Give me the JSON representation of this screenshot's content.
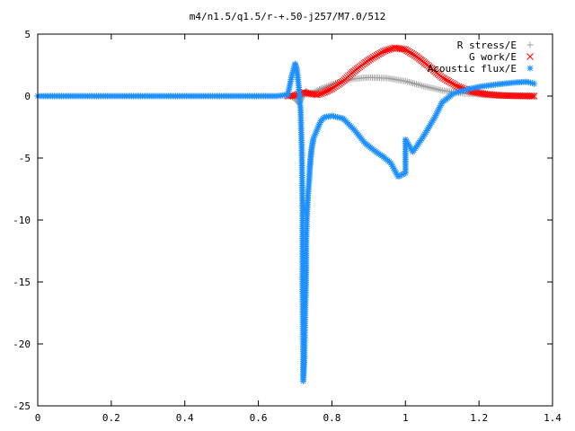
{
  "chart_data": {
    "type": "scatter",
    "title": "m4/n1.5/q1.5/r-+.50-j257/M7.0/512",
    "xlabel": "",
    "ylabel": "",
    "xlim": [
      0,
      1.4
    ],
    "ylim": [
      -25,
      5
    ],
    "x_ticks": [
      "0",
      "0.2",
      "0.4",
      "0.6",
      "0.8",
      "1",
      "1.2",
      "1.4"
    ],
    "y_ticks": [
      "5",
      "0",
      "-5",
      "-10",
      "-15",
      "-20",
      "-25"
    ],
    "grid": false,
    "legend_position": "top-right",
    "series": [
      {
        "name": "R stress/E",
        "marker": "+",
        "color": "#a0a0a0",
        "points": [
          [
            0.685,
            0.0
          ],
          [
            0.7,
            -0.2
          ],
          [
            0.71,
            -0.6
          ],
          [
            0.72,
            -0.1
          ],
          [
            0.73,
            0.4
          ],
          [
            0.74,
            0.2
          ],
          [
            0.75,
            0.3
          ],
          [
            0.77,
            0.6
          ],
          [
            0.8,
            0.95
          ],
          [
            0.83,
            1.2
          ],
          [
            0.86,
            1.4
          ],
          [
            0.9,
            1.5
          ],
          [
            0.95,
            1.45
          ],
          [
            1.0,
            1.2
          ],
          [
            1.05,
            0.8
          ],
          [
            1.1,
            0.45
          ],
          [
            1.15,
            0.25
          ],
          [
            1.2,
            0.12
          ],
          [
            1.25,
            0.05
          ],
          [
            1.3,
            0.02
          ],
          [
            1.35,
            0.01
          ]
        ]
      },
      {
        "name": "G work/E",
        "marker": "x",
        "color": "#ff0000",
        "points": [
          [
            0.68,
            0.0
          ],
          [
            0.7,
            0.05
          ],
          [
            0.72,
            0.3
          ],
          [
            0.74,
            0.2
          ],
          [
            0.76,
            0.1
          ],
          [
            0.78,
            0.3
          ],
          [
            0.8,
            0.6
          ],
          [
            0.83,
            1.2
          ],
          [
            0.86,
            2.0
          ],
          [
            0.9,
            2.9
          ],
          [
            0.94,
            3.6
          ],
          [
            0.97,
            3.9
          ],
          [
            1.0,
            3.75
          ],
          [
            1.03,
            3.2
          ],
          [
            1.06,
            2.5
          ],
          [
            1.1,
            1.5
          ],
          [
            1.14,
            0.8
          ],
          [
            1.18,
            0.35
          ],
          [
            1.22,
            0.15
          ],
          [
            1.26,
            0.05
          ],
          [
            1.3,
            0.02
          ],
          [
            1.35,
            0.0
          ]
        ]
      },
      {
        "name": "Acoustic flux/E",
        "marker": "*",
        "color": "#1e90ff",
        "points": [
          [
            0.0,
            0.0
          ],
          [
            0.05,
            0.0
          ],
          [
            0.1,
            0.0
          ],
          [
            0.15,
            0.0
          ],
          [
            0.2,
            0.0
          ],
          [
            0.25,
            0.0
          ],
          [
            0.3,
            0.0
          ],
          [
            0.35,
            0.0
          ],
          [
            0.4,
            0.0
          ],
          [
            0.45,
            0.0
          ],
          [
            0.5,
            0.0
          ],
          [
            0.55,
            0.0
          ],
          [
            0.6,
            0.0
          ],
          [
            0.65,
            0.0
          ],
          [
            0.68,
            0.1
          ],
          [
            0.69,
            1.5
          ],
          [
            0.7,
            2.6
          ],
          [
            0.705,
            2.1
          ],
          [
            0.71,
            0.7
          ],
          [
            0.715,
            -1.2
          ],
          [
            0.718,
            -4.2
          ],
          [
            0.72,
            -9.1
          ],
          [
            0.72,
            -15.3
          ],
          [
            0.722,
            -21.1
          ],
          [
            0.722,
            -23.0
          ],
          [
            0.725,
            -21.2
          ],
          [
            0.727,
            -17.7
          ],
          [
            0.73,
            -14.4
          ],
          [
            0.73,
            -11.8
          ],
          [
            0.732,
            -9.6
          ],
          [
            0.735,
            -8.0
          ],
          [
            0.738,
            -6.8
          ],
          [
            0.74,
            -5.8
          ],
          [
            0.742,
            -5.0
          ],
          [
            0.745,
            -4.2
          ],
          [
            0.75,
            -3.4
          ],
          [
            0.76,
            -2.7
          ],
          [
            0.77,
            -2.0
          ],
          [
            0.78,
            -1.7
          ],
          [
            0.8,
            -1.6
          ],
          [
            0.83,
            -1.8
          ],
          [
            0.86,
            -2.7
          ],
          [
            0.89,
            -3.8
          ],
          [
            0.92,
            -4.5
          ],
          [
            0.94,
            -4.9
          ],
          [
            0.96,
            -5.4
          ],
          [
            0.98,
            -6.5
          ],
          [
            1.0,
            -6.2
          ],
          [
            1.0,
            -3.5
          ],
          [
            1.02,
            -4.5
          ],
          [
            1.05,
            -3.2
          ],
          [
            1.08,
            -1.7
          ],
          [
            1.1,
            -0.5
          ],
          [
            1.13,
            0.2
          ],
          [
            1.17,
            0.55
          ],
          [
            1.2,
            0.75
          ],
          [
            1.25,
            0.95
          ],
          [
            1.3,
            1.1
          ],
          [
            1.33,
            1.15
          ],
          [
            1.35,
            1.0
          ]
        ]
      }
    ]
  }
}
